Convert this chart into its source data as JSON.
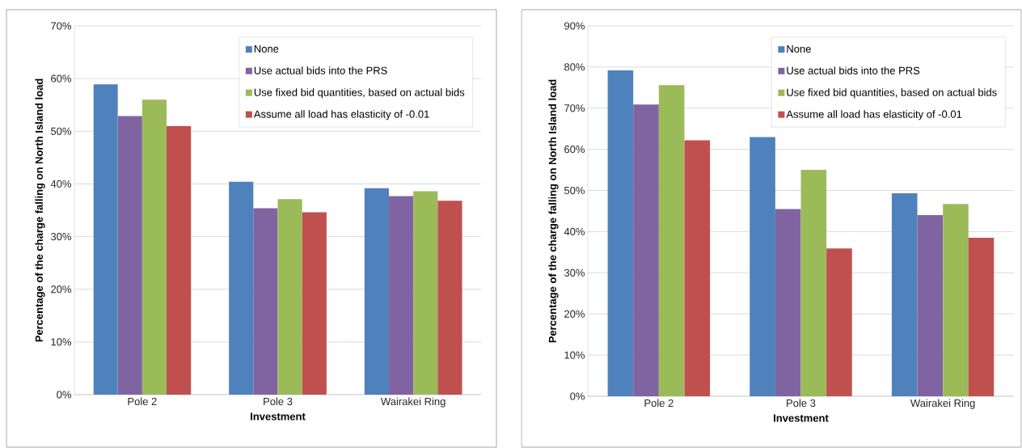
{
  "chart_data": [
    {
      "type": "bar",
      "xlabel": "Investment",
      "ylabel": "Percentage of the charge falling on North Island load",
      "categories": [
        "Pole 2",
        "Pole 3",
        "Wairakei Ring"
      ],
      "series": [
        {
          "name": "None",
          "color": "#4f81bd",
          "values": [
            58.9,
            40.4,
            39.2
          ]
        },
        {
          "name": "Use actual bids into the PRS",
          "color": "#8064a2",
          "values": [
            52.9,
            35.4,
            37.7
          ]
        },
        {
          "name": "Use fixed bid quantities, based on actual bids",
          "color": "#9bbb59",
          "values": [
            56.0,
            37.1,
            38.6
          ]
        },
        {
          "name": "Assume all load has elasticity of -0.01",
          "color": "#c0504d",
          "values": [
            51.0,
            34.6,
            36.8
          ]
        }
      ],
      "ylim": [
        0,
        70
      ],
      "yticks": [
        {
          "value": 0,
          "label": "0%"
        },
        {
          "value": 10,
          "label": "10%"
        },
        {
          "value": 20,
          "label": "20%"
        },
        {
          "value": 30,
          "label": "30%"
        },
        {
          "value": 40,
          "label": "40%"
        },
        {
          "value": 50,
          "label": "50%"
        },
        {
          "value": 60,
          "label": "60%"
        },
        {
          "value": 70,
          "label": "70%"
        }
      ],
      "grid": "y",
      "legend": "top right"
    },
    {
      "type": "bar",
      "xlabel": "Investment",
      "ylabel": "Percentage of the charge falling on North Island load",
      "categories": [
        "Pole 2",
        "Pole 3",
        "Wairakei Ring"
      ],
      "series": [
        {
          "name": "None",
          "color": "#4f81bd",
          "values": [
            79.2,
            63.0,
            49.3
          ]
        },
        {
          "name": "Use actual bids into the PRS",
          "color": "#8064a2",
          "values": [
            70.9,
            45.5,
            44.0
          ]
        },
        {
          "name": "Use fixed bid quantities, based on actual bids",
          "color": "#9bbb59",
          "values": [
            75.6,
            55.0,
            46.7
          ]
        },
        {
          "name": "Assume all load has elasticity of -0.01",
          "color": "#c0504d",
          "values": [
            62.2,
            35.9,
            38.5
          ]
        }
      ],
      "ylim": [
        0,
        90
      ],
      "yticks": [
        {
          "value": 0,
          "label": "0%"
        },
        {
          "value": 10,
          "label": "10%"
        },
        {
          "value": 20,
          "label": "20%"
        },
        {
          "value": 30,
          "label": "30%"
        },
        {
          "value": 40,
          "label": "40%"
        },
        {
          "value": 50,
          "label": "50%"
        },
        {
          "value": 60,
          "label": "60%"
        },
        {
          "value": 70,
          "label": "70%"
        },
        {
          "value": 80,
          "label": "80%"
        },
        {
          "value": 90,
          "label": "90%"
        }
      ],
      "grid": "y",
      "legend": "top right"
    }
  ]
}
